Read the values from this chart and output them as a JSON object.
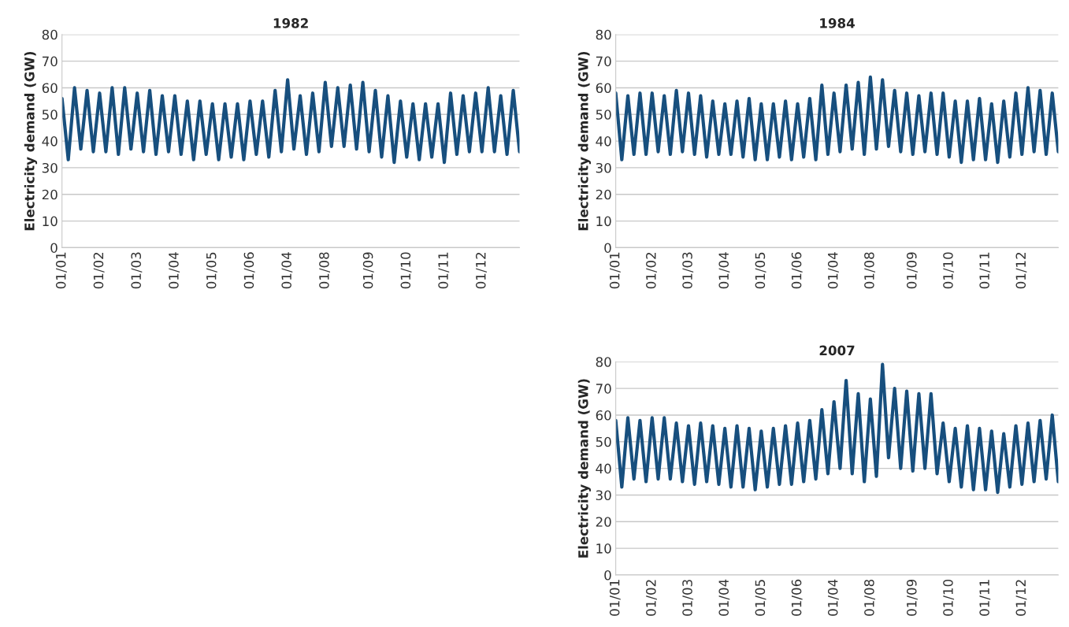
{
  "chart_data": [
    {
      "type": "line",
      "title": "1982",
      "ylabel": "Electricity demand (GW)",
      "ylim": [
        0,
        80
      ],
      "yticks": [
        0,
        10,
        20,
        30,
        40,
        50,
        60,
        70,
        80
      ],
      "grid": "y",
      "line_style": "solid",
      "categories": [
        "01/01",
        null,
        null,
        null,
        null,
        null,
        "01/02",
        null,
        null,
        null,
        null,
        null,
        "01/03",
        null,
        null,
        null,
        null,
        null,
        "01/04",
        null,
        null,
        null,
        null,
        null,
        "01/05",
        null,
        null,
        null,
        null,
        null,
        "01/06",
        null,
        null,
        null,
        null,
        null,
        "01/04",
        null,
        null,
        null,
        null,
        null,
        "01/08",
        null,
        null,
        null,
        null,
        null,
        null,
        "01/09",
        null,
        null,
        null,
        null,
        null,
        "01/10",
        null,
        null,
        null,
        null,
        null,
        "01/11",
        null,
        null,
        null,
        null,
        null,
        "01/12",
        null,
        null,
        null,
        null,
        null,
        null
      ],
      "series": [
        {
          "color": "#174f7e",
          "values": [
            56,
            33,
            60,
            37,
            59,
            36,
            58,
            36,
            60,
            35,
            60,
            37,
            58,
            36,
            59,
            35,
            57,
            36,
            57,
            35,
            55,
            33,
            55,
            35,
            54,
            33,
            54,
            34,
            54,
            33,
            55,
            35,
            55,
            34,
            59,
            36,
            63,
            37,
            57,
            35,
            58,
            36,
            62,
            38,
            60,
            38,
            61,
            37,
            62,
            36,
            59,
            34,
            57,
            32,
            55,
            34,
            54,
            33,
            54,
            34,
            54,
            32,
            58,
            35,
            57,
            36,
            58,
            36,
            60,
            36,
            57,
            35,
            59,
            36
          ]
        }
      ]
    },
    {
      "type": "line",
      "title": "1984",
      "ylabel": "Electricity demand (GW)",
      "ylim": [
        0,
        80
      ],
      "yticks": [
        0,
        10,
        20,
        30,
        40,
        50,
        60,
        70,
        80
      ],
      "grid": "y",
      "line_style": "solid",
      "categories": [
        "01/01",
        null,
        null,
        null,
        null,
        null,
        "01/02",
        null,
        null,
        null,
        null,
        null,
        "01/03",
        null,
        null,
        null,
        null,
        null,
        "01/04",
        null,
        null,
        null,
        null,
        null,
        "01/05",
        null,
        null,
        null,
        null,
        null,
        "01/06",
        null,
        null,
        null,
        null,
        null,
        "01/04",
        null,
        null,
        null,
        null,
        null,
        "01/08",
        null,
        null,
        null,
        null,
        null,
        null,
        "01/09",
        null,
        null,
        null,
        null,
        null,
        "01/10",
        null,
        null,
        null,
        null,
        null,
        "01/11",
        null,
        null,
        null,
        null,
        null,
        "01/12",
        null,
        null,
        null,
        null,
        null,
        null
      ],
      "series": [
        {
          "color": "#174f7e",
          "values": [
            58,
            33,
            57,
            35,
            58,
            35,
            58,
            36,
            57,
            35,
            59,
            36,
            58,
            35,
            57,
            34,
            55,
            35,
            54,
            35,
            55,
            34,
            56,
            33,
            54,
            33,
            54,
            34,
            55,
            33,
            54,
            34,
            56,
            33,
            61,
            35,
            58,
            36,
            61,
            37,
            62,
            35,
            64,
            37,
            63,
            38,
            59,
            36,
            58,
            35,
            57,
            36,
            58,
            35,
            58,
            34,
            55,
            32,
            55,
            33,
            56,
            33,
            54,
            32,
            55,
            34,
            58,
            35,
            60,
            36,
            59,
            35,
            58,
            36
          ]
        }
      ]
    },
    {
      "type": "line",
      "title": "2007",
      "ylabel": "Electricity demand (GW)",
      "ylim": [
        0,
        80
      ],
      "yticks": [
        0,
        10,
        20,
        30,
        40,
        50,
        60,
        70,
        80
      ],
      "grid": "y",
      "line_style": "solid",
      "categories": [
        "01/01",
        null,
        null,
        null,
        null,
        null,
        "01/02",
        null,
        null,
        null,
        null,
        null,
        "01/03",
        null,
        null,
        null,
        null,
        null,
        "01/04",
        null,
        null,
        null,
        null,
        null,
        "01/05",
        null,
        null,
        null,
        null,
        null,
        "01/06",
        null,
        null,
        null,
        null,
        null,
        "01/04",
        null,
        null,
        null,
        null,
        null,
        "01/08",
        null,
        null,
        null,
        null,
        null,
        null,
        "01/09",
        null,
        null,
        null,
        null,
        null,
        "01/10",
        null,
        null,
        null,
        null,
        null,
        "01/11",
        null,
        null,
        null,
        null,
        null,
        "01/12",
        null,
        null,
        null,
        null,
        null,
        null
      ],
      "series": [
        {
          "color": "#174f7e",
          "values": [
            58,
            33,
            59,
            36,
            58,
            35,
            59,
            36,
            59,
            36,
            57,
            35,
            56,
            34,
            57,
            35,
            56,
            34,
            55,
            33,
            56,
            33,
            55,
            32,
            54,
            33,
            55,
            34,
            56,
            34,
            57,
            35,
            58,
            36,
            62,
            38,
            65,
            40,
            73,
            38,
            68,
            35,
            66,
            37,
            79,
            44,
            70,
            40,
            69,
            39,
            68,
            40,
            68,
            38,
            57,
            35,
            55,
            33,
            56,
            32,
            55,
            32,
            54,
            31,
            53,
            33,
            56,
            34,
            57,
            35,
            58,
            36,
            60,
            35
          ]
        }
      ]
    }
  ]
}
